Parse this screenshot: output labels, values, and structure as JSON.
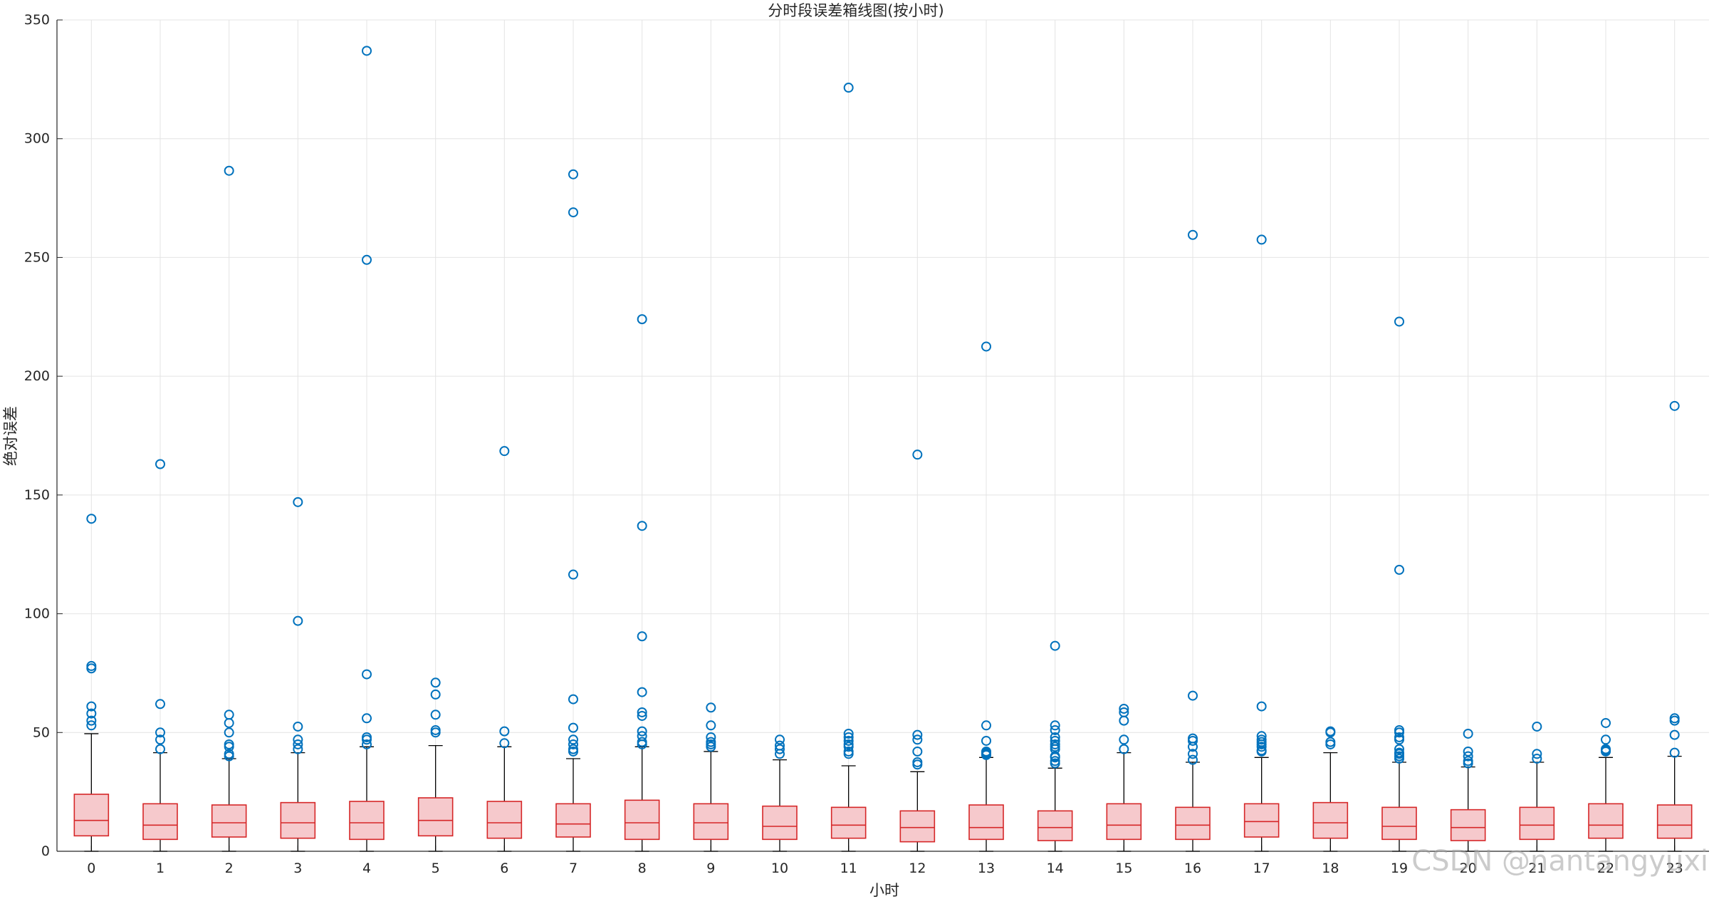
{
  "chart_data": {
    "type": "box",
    "title": "分时段误差箱线图(按小时)",
    "xlabel": "小时",
    "ylabel": "绝对误差",
    "ylim": [
      0,
      350
    ],
    "yticks": [
      0,
      50,
      100,
      150,
      200,
      250,
      300,
      350
    ],
    "grid": true,
    "colors": {
      "box_edge": "#d62728",
      "box_fill": "#f6c9cc",
      "outlier": "#0072bd",
      "grid": "#e4e4e4",
      "axis": "#262626"
    },
    "categories": [
      "0",
      "1",
      "2",
      "3",
      "4",
      "5",
      "6",
      "7",
      "8",
      "9",
      "10",
      "11",
      "12",
      "13",
      "14",
      "15",
      "16",
      "17",
      "18",
      "19",
      "20",
      "21",
      "22",
      "23"
    ],
    "boxes": [
      {
        "q1": 6.5,
        "median": 13,
        "q3": 24,
        "whisker_low": 0,
        "whisker_high": 49.5,
        "outliers": [
          140,
          78,
          77,
          61,
          58,
          55,
          53
        ]
      },
      {
        "q1": 5,
        "median": 11,
        "q3": 20,
        "whisker_low": 0,
        "whisker_high": 41.5,
        "outliers": [
          163,
          62,
          50,
          47,
          43
        ]
      },
      {
        "q1": 6,
        "median": 12,
        "q3": 19.5,
        "whisker_low": 0,
        "whisker_high": 39,
        "outliers": [
          286.5,
          57.5,
          54,
          50,
          45,
          44,
          41,
          40
        ]
      },
      {
        "q1": 5.5,
        "median": 12,
        "q3": 20.5,
        "whisker_low": 0,
        "whisker_high": 41.5,
        "outliers": [
          147,
          97,
          52.5,
          47,
          45,
          43
        ]
      },
      {
        "q1": 5,
        "median": 12,
        "q3": 21,
        "whisker_low": 0,
        "whisker_high": 44,
        "outliers": [
          337,
          249,
          74.5,
          56,
          48,
          47,
          45
        ]
      },
      {
        "q1": 6.5,
        "median": 13,
        "q3": 22.5,
        "whisker_low": 0,
        "whisker_high": 44.5,
        "outliers": [
          71,
          66,
          57.5,
          51,
          50
        ]
      },
      {
        "q1": 5.5,
        "median": 12,
        "q3": 21,
        "whisker_low": 0,
        "whisker_high": 44,
        "outliers": [
          168.5,
          50.5,
          45.5
        ]
      },
      {
        "q1": 6,
        "median": 11.5,
        "q3": 20,
        "whisker_low": 0,
        "whisker_high": 39,
        "outliers": [
          285,
          269,
          116.5,
          64,
          52,
          47,
          45,
          43,
          42
        ]
      },
      {
        "q1": 5,
        "median": 12,
        "q3": 21.5,
        "whisker_low": 0,
        "whisker_high": 44,
        "outliers": [
          224,
          137,
          90.5,
          67,
          58.5,
          57,
          50.5,
          48.5,
          46,
          45
        ]
      },
      {
        "q1": 5,
        "median": 12,
        "q3": 20,
        "whisker_low": 0,
        "whisker_high": 42,
        "outliers": [
          60.5,
          53,
          48,
          46,
          45,
          44
        ]
      },
      {
        "q1": 5,
        "median": 10.5,
        "q3": 19,
        "whisker_low": 0,
        "whisker_high": 38.5,
        "outliers": [
          47,
          44.5,
          43,
          41
        ]
      },
      {
        "q1": 5.5,
        "median": 11,
        "q3": 18.5,
        "whisker_low": 0,
        "whisker_high": 36,
        "outliers": [
          321.5,
          49.5,
          48,
          46.5,
          45,
          44,
          42,
          41
        ]
      },
      {
        "q1": 4,
        "median": 10,
        "q3": 17,
        "whisker_low": 0,
        "whisker_high": 33.5,
        "outliers": [
          167,
          49,
          47,
          42,
          37.5,
          36.5
        ]
      },
      {
        "q1": 5,
        "median": 10,
        "q3": 19.5,
        "whisker_low": 0,
        "whisker_high": 39.5,
        "outliers": [
          212.5,
          53,
          46.5,
          42,
          41.5,
          41,
          40.5
        ]
      },
      {
        "q1": 4.5,
        "median": 10,
        "q3": 17,
        "whisker_low": 0,
        "whisker_high": 35,
        "outliers": [
          86.5,
          53,
          51,
          48,
          46.5,
          45,
          44,
          43,
          40,
          39.5,
          38,
          37
        ]
      },
      {
        "q1": 5,
        "median": 11,
        "q3": 20,
        "whisker_low": 0,
        "whisker_high": 41.5,
        "outliers": [
          60,
          58.5,
          55,
          47,
          43
        ]
      },
      {
        "q1": 5,
        "median": 11,
        "q3": 18.5,
        "whisker_low": 0,
        "whisker_high": 37.5,
        "outliers": [
          259.5,
          65.5,
          47.5,
          46.5,
          44,
          41,
          38.5
        ]
      },
      {
        "q1": 6,
        "median": 12.5,
        "q3": 20,
        "whisker_low": 0,
        "whisker_high": 39.5,
        "outliers": [
          257.5,
          61,
          48.5,
          47,
          46,
          45,
          44,
          42.5,
          42
        ]
      },
      {
        "q1": 5.5,
        "median": 12,
        "q3": 20.5,
        "whisker_low": 0,
        "whisker_high": 41.5,
        "outliers": [
          50.5,
          50,
          46,
          45
        ]
      },
      {
        "q1": 5,
        "median": 10.5,
        "q3": 18.5,
        "whisker_low": 0,
        "whisker_high": 37.5,
        "outliers": [
          223,
          118.5,
          51,
          50,
          48,
          47,
          43,
          41.5,
          41,
          40,
          39
        ]
      },
      {
        "q1": 4.5,
        "median": 10,
        "q3": 17.5,
        "whisker_low": 0,
        "whisker_high": 35.5,
        "outliers": [
          49.5,
          42,
          40,
          38,
          37
        ]
      },
      {
        "q1": 5,
        "median": 11,
        "q3": 18.5,
        "whisker_low": 0,
        "whisker_high": 37.5,
        "outliers": [
          52.5,
          41,
          39
        ]
      },
      {
        "q1": 5.5,
        "median": 11,
        "q3": 20,
        "whisker_low": 0,
        "whisker_high": 39.5,
        "outliers": [
          54,
          47,
          43,
          42.5,
          42
        ]
      },
      {
        "q1": 5.5,
        "median": 11,
        "q3": 19.5,
        "whisker_low": 0,
        "whisker_high": 40,
        "outliers": [
          187.5,
          56,
          55,
          49,
          41.5
        ]
      }
    ]
  },
  "watermark": "CSDN @nantangyuxi"
}
